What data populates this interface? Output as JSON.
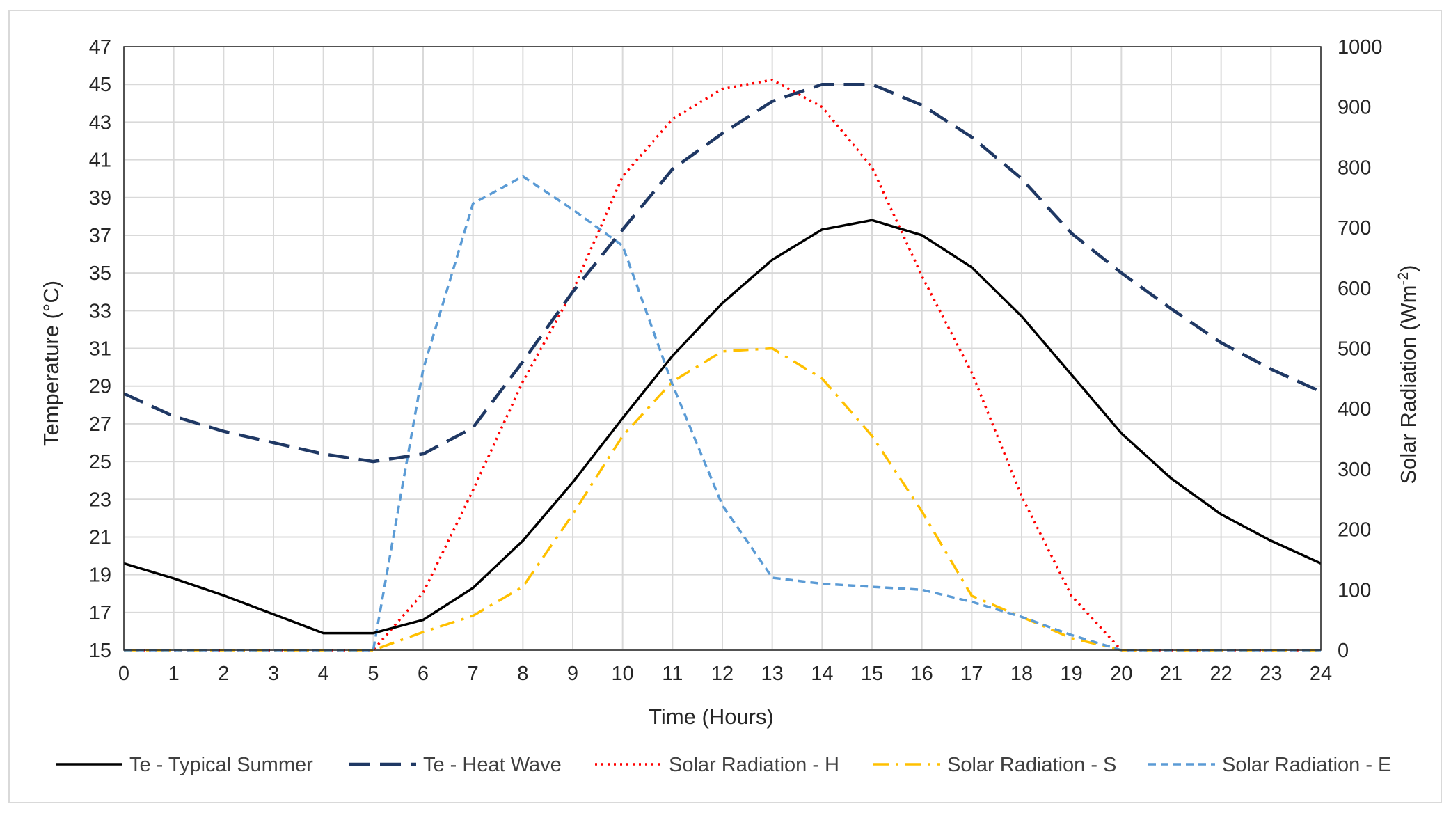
{
  "chart_data": {
    "type": "line",
    "title": "",
    "xlabel": "Time (Hours)",
    "ylabel": "Temperature (°C)",
    "y2label_main": "Solar Radiation (Wm",
    "y2label_sup": "-2",
    "y2label_close": ")",
    "x": [
      0,
      1,
      2,
      3,
      4,
      5,
      6,
      7,
      8,
      9,
      10,
      11,
      12,
      13,
      14,
      15,
      16,
      17,
      18,
      19,
      20,
      21,
      22,
      23,
      24
    ],
    "xlim": [
      0,
      24
    ],
    "ylim": [
      15,
      47
    ],
    "yticks": [
      15,
      17,
      19,
      21,
      23,
      25,
      27,
      29,
      31,
      33,
      35,
      37,
      39,
      41,
      43,
      45,
      47
    ],
    "y2lim": [
      0,
      1000
    ],
    "y2ticks": [
      0,
      100,
      200,
      300,
      400,
      500,
      600,
      700,
      800,
      900,
      1000
    ],
    "grid": true,
    "legend_position": "bottom",
    "series": [
      {
        "name": "Te - Typical Summer",
        "axis": "left",
        "color": "#000000",
        "dash": "solid",
        "values": [
          19.6,
          18.8,
          17.9,
          16.9,
          15.9,
          15.9,
          16.6,
          18.3,
          20.8,
          23.9,
          27.3,
          30.6,
          33.4,
          35.7,
          37.3,
          37.8,
          37.0,
          35.3,
          32.7,
          29.6,
          26.5,
          24.1,
          22.2,
          20.8,
          19.6
        ]
      },
      {
        "name": "Te - Heat Wave",
        "axis": "left",
        "color": "#1f3864",
        "dash": "long-dash",
        "values": [
          28.6,
          27.4,
          26.6,
          26.0,
          25.4,
          25.0,
          25.4,
          26.8,
          30.3,
          34.0,
          37.3,
          40.5,
          42.4,
          44.1,
          45.0,
          45.0,
          43.9,
          42.2,
          40.0,
          37.1,
          35.0,
          33.1,
          31.3,
          29.9,
          28.7
        ]
      },
      {
        "name": "Solar Radiation - H",
        "axis": "right",
        "color": "#ff0000",
        "dash": "dot",
        "values": [
          0,
          0,
          0,
          0,
          0,
          0,
          95,
          265,
          445,
          595,
          785,
          880,
          930,
          945,
          900,
          800,
          620,
          460,
          255,
          90,
          0,
          0,
          0,
          0,
          0
        ]
      },
      {
        "name": "Solar Radiation - S",
        "axis": "right",
        "color": "#ffc000",
        "dash": "dash-dot",
        "values": [
          0,
          0,
          0,
          0,
          0,
          0,
          30,
          57,
          105,
          225,
          355,
          445,
          495,
          500,
          450,
          355,
          230,
          90,
          55,
          20,
          0,
          0,
          0,
          0,
          0
        ]
      },
      {
        "name": "Solar Radiation - E",
        "axis": "right",
        "color": "#5b9bd5",
        "dash": "short-dash",
        "values": [
          0,
          0,
          0,
          0,
          0,
          0,
          465,
          740,
          785,
          730,
          670,
          440,
          240,
          120,
          110,
          105,
          100,
          80,
          55,
          25,
          0,
          0,
          0,
          0,
          0
        ]
      }
    ]
  }
}
